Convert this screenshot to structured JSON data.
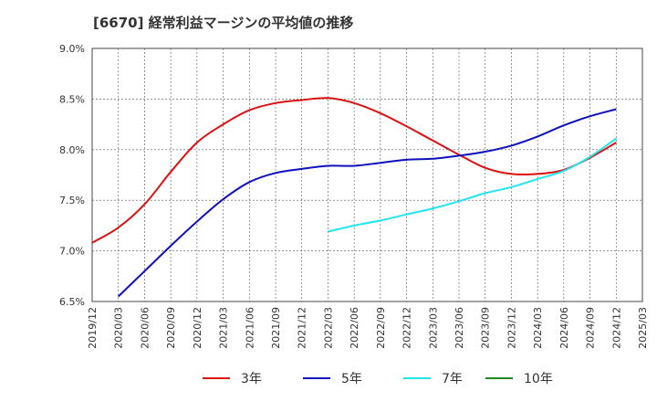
{
  "chart_data": {
    "type": "line",
    "title": "[6670]  経常利益マージンの平均値の推移",
    "xlabel": "",
    "ylabel": "",
    "ylim": [
      6.5,
      9.0
    ],
    "y_ticks": [
      "6.5%",
      "7.0%",
      "7.5%",
      "8.0%",
      "8.5%",
      "9.0%"
    ],
    "y_tick_values": [
      6.5,
      7.0,
      7.5,
      8.0,
      8.5,
      9.0
    ],
    "x_ticks": [
      "2019/12",
      "2020/03",
      "2020/06",
      "2020/09",
      "2020/12",
      "2021/03",
      "2021/06",
      "2021/09",
      "2021/12",
      "2022/03",
      "2022/06",
      "2022/09",
      "2022/12",
      "2023/03",
      "2023/06",
      "2023/09",
      "2023/12",
      "2024/03",
      "2024/06",
      "2024/09",
      "2024/12",
      "2025/03"
    ],
    "grid": true,
    "legend_position": "bottom",
    "series": [
      {
        "name": "3年",
        "color": "#dd1111",
        "x": [
          "2019/12",
          "2020/03",
          "2020/06",
          "2020/09",
          "2020/12",
          "2021/03",
          "2021/06",
          "2021/09",
          "2021/12",
          "2022/03",
          "2022/06",
          "2022/09",
          "2022/12",
          "2023/03",
          "2023/06",
          "2023/09",
          "2023/12",
          "2024/03",
          "2024/06",
          "2024/09",
          "2024/12"
        ],
        "values": [
          7.08,
          7.23,
          7.46,
          7.78,
          8.07,
          8.25,
          8.39,
          8.46,
          8.49,
          8.51,
          8.46,
          8.36,
          8.23,
          8.09,
          7.95,
          7.82,
          7.76,
          7.76,
          7.8,
          7.92,
          8.07
        ]
      },
      {
        "name": "5年",
        "color": "#1111bb",
        "x": [
          "2020/03",
          "2020/06",
          "2020/09",
          "2020/12",
          "2021/03",
          "2021/06",
          "2021/09",
          "2021/12",
          "2022/03",
          "2022/06",
          "2022/09",
          "2022/12",
          "2023/03",
          "2023/06",
          "2023/09",
          "2023/12",
          "2024/03",
          "2024/06",
          "2024/09",
          "2024/12"
        ],
        "values": [
          6.55,
          6.8,
          7.05,
          7.29,
          7.51,
          7.68,
          7.77,
          7.81,
          7.84,
          7.84,
          7.87,
          7.9,
          7.91,
          7.94,
          7.98,
          8.04,
          8.13,
          8.24,
          8.33,
          8.4
        ]
      },
      {
        "name": "7年",
        "color": "#22e5ee",
        "x": [
          "2022/03",
          "2022/06",
          "2022/09",
          "2022/12",
          "2023/03",
          "2023/06",
          "2023/09",
          "2023/12",
          "2024/03",
          "2024/06",
          "2024/09",
          "2024/12"
        ],
        "values": [
          7.19,
          7.25,
          7.3,
          7.36,
          7.42,
          7.49,
          7.57,
          7.63,
          7.71,
          7.79,
          7.93,
          8.11
        ]
      },
      {
        "name": "10年",
        "color": "#228822",
        "x": [],
        "values": []
      }
    ]
  }
}
